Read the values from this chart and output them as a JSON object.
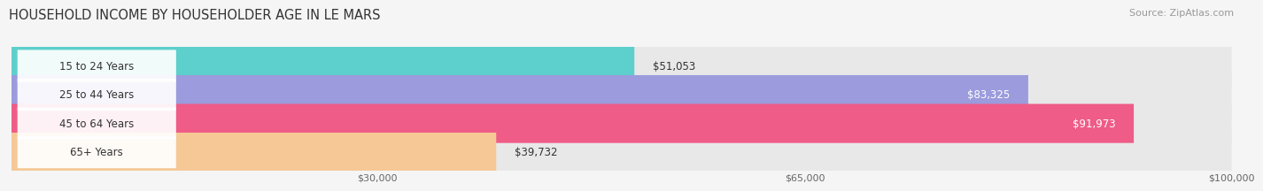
{
  "title": "HOUSEHOLD INCOME BY HOUSEHOLDER AGE IN LE MARS",
  "source": "Source: ZipAtlas.com",
  "categories": [
    "15 to 24 Years",
    "25 to 44 Years",
    "45 to 64 Years",
    "65+ Years"
  ],
  "values": [
    51053,
    83325,
    91973,
    39732
  ],
  "bar_colors": [
    "#5dcfcc",
    "#9b9bdd",
    "#ee5c87",
    "#f5c896"
  ],
  "bar_bg_color": "#e8e8e8",
  "value_labels": [
    "$51,053",
    "$83,325",
    "$91,973",
    "$39,732"
  ],
  "x_ticks": [
    30000,
    65000,
    100000
  ],
  "x_tick_labels": [
    "$30,000",
    "$65,000",
    "$100,000"
  ],
  "xmin": 0,
  "xmax": 100000,
  "background_color": "#f5f5f5",
  "title_fontsize": 10.5,
  "source_fontsize": 8,
  "label_fontsize": 8.5,
  "value_fontsize": 8.5,
  "label_inside_color": "#333333",
  "value_inside_color_dark": "#333333",
  "value_inside_color_light": "#ffffff"
}
